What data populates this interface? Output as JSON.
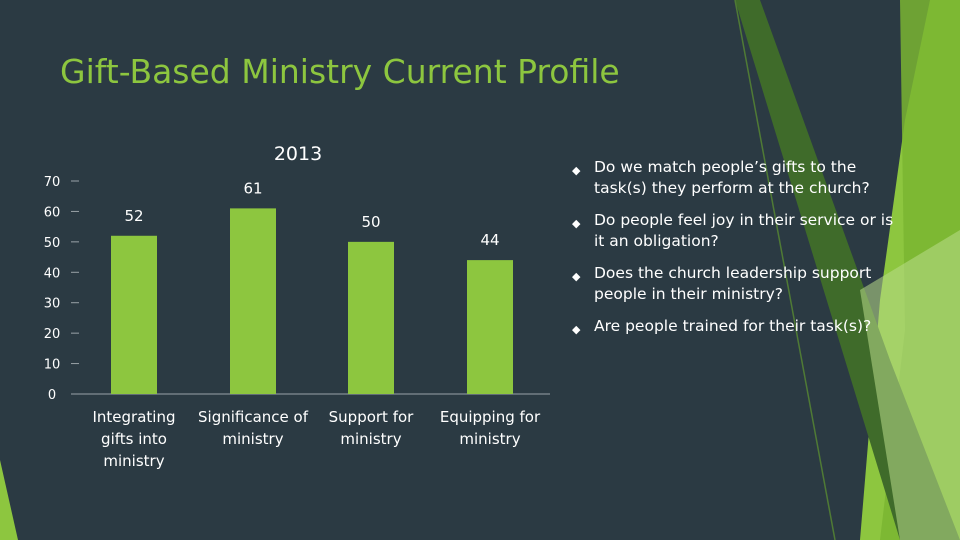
{
  "slide": {
    "title": "Gift-Based Ministry Current Profile",
    "accent_color": "#8dc63f",
    "background_color": "#2b3a43",
    "bullet_icon": "diamond-bullet-icon",
    "bullets": [
      "Do we match people’s gifts to the task(s) they perform at the church?",
      "Do people feel joy in their service or is it an obligation?",
      "Does the church leadership support people in their ministry?",
      "Are people trained for their task(s)?"
    ]
  },
  "chart_data": {
    "type": "bar",
    "title": "2013",
    "categories": [
      [
        "Integrating",
        "gifts into",
        "ministry"
      ],
      [
        "Significance of",
        "ministry"
      ],
      [
        "Support for",
        "ministry"
      ],
      [
        "Equipping for",
        "ministry"
      ]
    ],
    "values": [
      52,
      61,
      50,
      44
    ],
    "data_labels": [
      "52",
      "61",
      "50",
      "44"
    ],
    "yticks": [
      0,
      10,
      20,
      30,
      40,
      50,
      60,
      70
    ],
    "ylim": [
      0,
      70
    ],
    "grid": false,
    "legend": "none",
    "bar_color": "#8dc63f",
    "text_color": "#ffffff",
    "axis_color": "#9aa3a8"
  }
}
